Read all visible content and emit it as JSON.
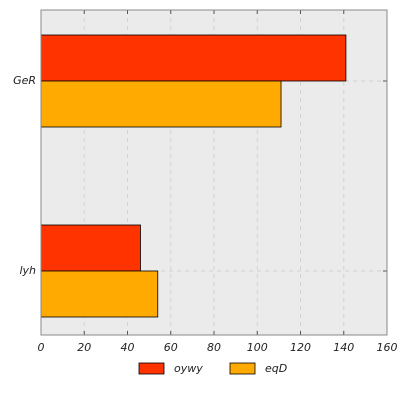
{
  "chart_data": {
    "type": "bar",
    "orientation": "horizontal",
    "categories": [
      "GeR",
      "lyh"
    ],
    "series": [
      {
        "name": "oywy",
        "color": "#ff3300",
        "values": [
          141,
          46
        ]
      },
      {
        "name": "eqD",
        "color": "#ffaa00",
        "values": [
          111,
          54
        ]
      }
    ],
    "xlim": [
      0,
      160
    ],
    "xticks": [
      "0",
      "20",
      "40",
      "60",
      "80",
      "100",
      "120",
      "140",
      "160"
    ],
    "grid": true,
    "legend_position": "bottom"
  },
  "colors": {
    "plot_background": "#ebebeb",
    "grid": "#d2d2d2",
    "bar_edge": "#000000",
    "axis": "#888888"
  }
}
